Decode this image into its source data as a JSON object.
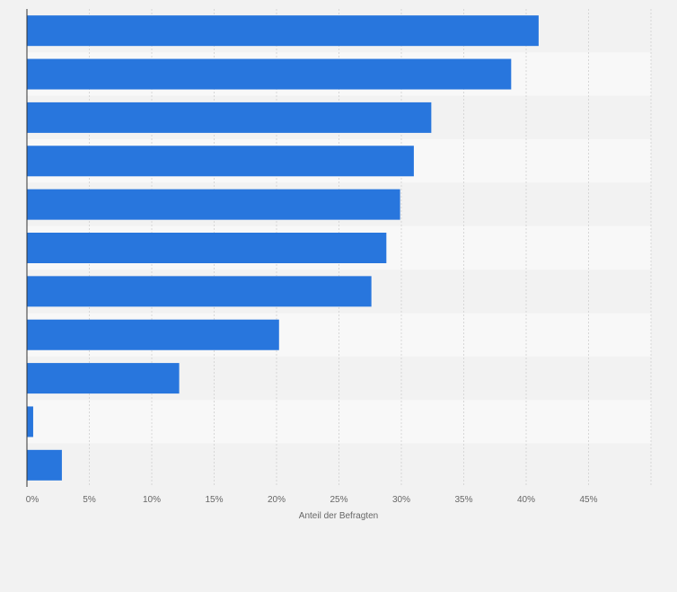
{
  "chart_data": {
    "type": "bar",
    "orientation": "horizontal",
    "categories": [
      "",
      "",
      "",
      "",
      "",
      "",
      "",
      "",
      "",
      "",
      ""
    ],
    "values": [
      41.0,
      38.8,
      32.4,
      31.0,
      29.9,
      28.8,
      27.6,
      20.2,
      12.2,
      0.5,
      2.8
    ],
    "xlabel": "Anteil der Befragten",
    "ylabel": "",
    "xlim": [
      0,
      50
    ],
    "x_ticks": [
      0,
      5,
      10,
      15,
      20,
      25,
      30,
      35,
      40,
      45
    ],
    "x_tick_labels": [
      "0%",
      "5%",
      "10%",
      "15%",
      "20%",
      "25%",
      "30%",
      "35%",
      "40%",
      "45%"
    ],
    "grid": true,
    "colors": {
      "bar": "#2876dd",
      "band_dark": "#f2f2f2",
      "band_light": "#f8f8f8",
      "grid": "#d7d7d7",
      "axis": "#333333",
      "text": "#666666"
    }
  }
}
